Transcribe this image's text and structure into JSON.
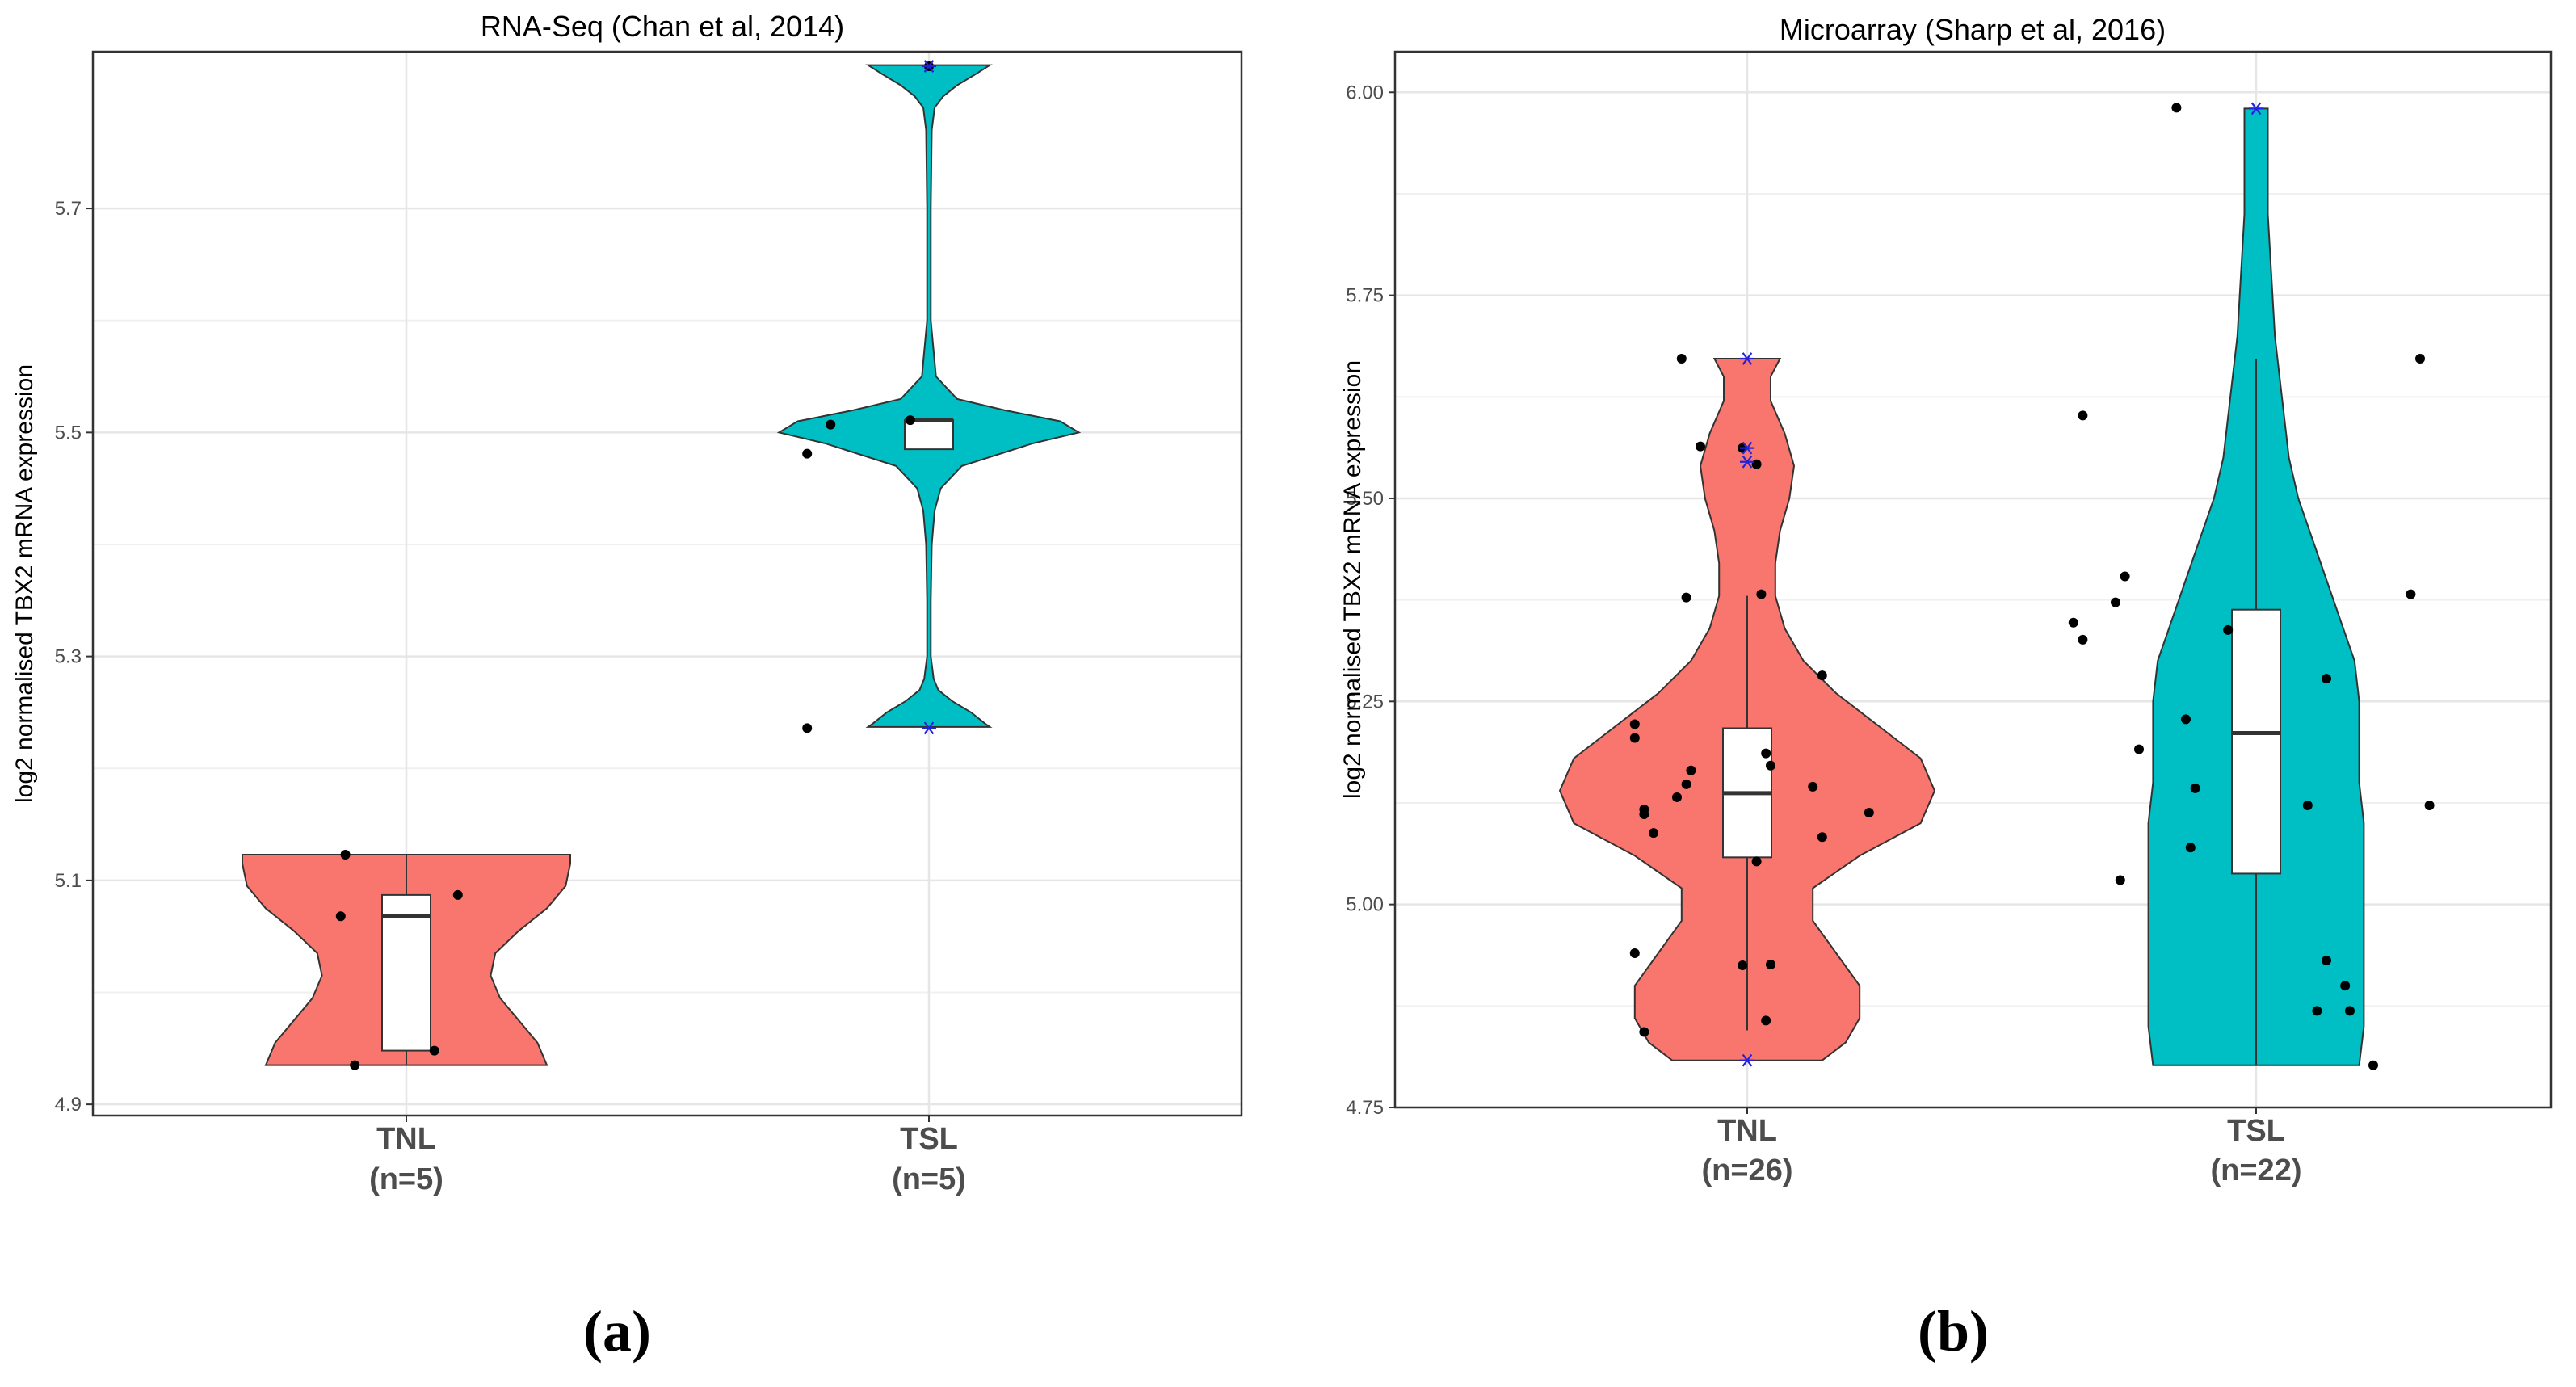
{
  "chart_data": [
    {
      "type": "violin",
      "panel_label": "(a)",
      "title": "RNA-Seq (Chan et al, 2014)",
      "ylabel": "log2 normalised TBX2 mRNA expression",
      "ylim": [
        4.89,
        5.84
      ],
      "yticks": [
        4.9,
        5.1,
        5.3,
        5.5,
        5.7
      ],
      "ytick_labels": [
        "4.9",
        "5.1",
        "5.3",
        "5.5",
        "5.7"
      ],
      "categories": [
        {
          "label": "TNL",
          "n_label": "(n=5)",
          "color": "#F8766D",
          "violin": [
            [
              4.935,
              0.3
            ],
            [
              4.955,
              0.28
            ],
            [
              4.975,
              0.24
            ],
            [
              4.995,
              0.2
            ],
            [
              5.015,
              0.18
            ],
            [
              5.035,
              0.19
            ],
            [
              5.055,
              0.24
            ],
            [
              5.075,
              0.3
            ],
            [
              5.095,
              0.34
            ],
            [
              5.115,
              0.35
            ],
            [
              5.123,
              0.35
            ]
          ],
          "box": {
            "whisker_low": 4.935,
            "q1": 4.948,
            "median": 5.068,
            "q3": 5.087,
            "whisker_high": 5.123
          },
          "points": [
            [
              -0.14,
              5.068
            ],
            [
              -0.13,
              5.123
            ],
            [
              -0.11,
              4.935
            ],
            [
              0.06,
              4.948
            ],
            [
              0.11,
              5.087
            ]
          ],
          "outliers": []
        },
        {
          "label": "TSL",
          "n_label": "(n=5)",
          "color": "#00BFC4",
          "violin": [
            [
              5.237,
              0.13
            ],
            [
              5.24,
              0.12
            ],
            [
              5.25,
              0.09
            ],
            [
              5.26,
              0.05
            ],
            [
              5.27,
              0.02
            ],
            [
              5.28,
              0.01
            ],
            [
              5.3,
              0.004
            ],
            [
              5.35,
              0.004
            ],
            [
              5.4,
              0.006
            ],
            [
              5.43,
              0.012
            ],
            [
              5.45,
              0.025
            ],
            [
              5.47,
              0.07
            ],
            [
              5.49,
              0.22
            ],
            [
              5.5,
              0.32
            ],
            [
              5.51,
              0.28
            ],
            [
              5.52,
              0.16
            ],
            [
              5.53,
              0.06
            ],
            [
              5.55,
              0.015
            ],
            [
              5.6,
              0.004
            ],
            [
              5.7,
              0.004
            ],
            [
              5.77,
              0.006
            ],
            [
              5.79,
              0.012
            ],
            [
              5.8,
              0.03
            ],
            [
              5.81,
              0.06
            ],
            [
              5.82,
              0.1
            ],
            [
              5.828,
              0.13
            ]
          ],
          "box": {
            "whisker_low": 5.485,
            "q1": 5.485,
            "median": 5.511,
            "q3": 5.511,
            "whisker_high": 5.511
          },
          "points": [
            [
              -0.26,
              5.481
            ],
            [
              -0.21,
              5.507
            ],
            [
              -0.26,
              5.236
            ],
            [
              -0.04,
              5.511
            ],
            [
              0.0,
              5.827
            ]
          ],
          "outliers": [
            [
              0.0,
              5.827
            ],
            [
              0.0,
              5.236
            ]
          ]
        }
      ]
    },
    {
      "type": "violin",
      "panel_label": "(b)",
      "title": "Microarray (Sharp et al, 2016)",
      "ylabel": "log2 normalised TBX2 mRNA expression",
      "ylim": [
        4.75,
        6.05
      ],
      "yticks": [
        4.75,
        5.0,
        5.25,
        5.5,
        5.75,
        6.0
      ],
      "ytick_labels": [
        "4.75",
        "5.00",
        "5.25",
        "5.50",
        "5.75",
        "6.00"
      ],
      "categories": [
        {
          "label": "TNL",
          "n_label": "(n=26)",
          "color": "#F8766D",
          "violin": [
            [
              4.808,
              0.16
            ],
            [
              4.83,
              0.21
            ],
            [
              4.86,
              0.24
            ],
            [
              4.9,
              0.24
            ],
            [
              4.94,
              0.19
            ],
            [
              4.98,
              0.14
            ],
            [
              5.02,
              0.14
            ],
            [
              5.06,
              0.24
            ],
            [
              5.1,
              0.37
            ],
            [
              5.14,
              0.4
            ],
            [
              5.18,
              0.37
            ],
            [
              5.22,
              0.28
            ],
            [
              5.26,
              0.19
            ],
            [
              5.3,
              0.12
            ],
            [
              5.34,
              0.08
            ],
            [
              5.38,
              0.06
            ],
            [
              5.42,
              0.06
            ],
            [
              5.46,
              0.07
            ],
            [
              5.5,
              0.09
            ],
            [
              5.54,
              0.1
            ],
            [
              5.58,
              0.08
            ],
            [
              5.62,
              0.05
            ],
            [
              5.65,
              0.05
            ],
            [
              5.672,
              0.07
            ]
          ],
          "box": {
            "whisker_low": 4.845,
            "q1": 5.058,
            "median": 5.137,
            "q3": 5.217,
            "whisker_high": 5.38
          },
          "points": [
            [
              -0.24,
              5.222
            ],
            [
              -0.24,
              5.205
            ],
            [
              -0.22,
              5.111
            ],
            [
              -0.22,
              5.117
            ],
            [
              -0.2,
              5.088
            ],
            [
              -0.24,
              4.94
            ],
            [
              -0.22,
              4.843
            ],
            [
              -0.14,
              5.672
            ],
            [
              -0.13,
              5.378
            ],
            [
              -0.12,
              5.165
            ],
            [
              -0.13,
              5.148
            ],
            [
              -0.15,
              5.132
            ],
            [
              -0.1,
              5.564
            ],
            [
              -0.01,
              5.562
            ],
            [
              0.02,
              5.542
            ],
            [
              0.03,
              5.382
            ],
            [
              0.04,
              5.186
            ],
            [
              0.05,
              5.171
            ],
            [
              0.02,
              5.053
            ],
            [
              -0.01,
              4.925
            ],
            [
              0.05,
              4.926
            ],
            [
              0.04,
              4.857
            ],
            [
              0.16,
              5.282
            ],
            [
              0.14,
              5.145
            ],
            [
              0.16,
              5.083
            ],
            [
              0.26,
              5.113
            ]
          ],
          "outliers": [
            [
              0.0,
              5.672
            ],
            [
              0.0,
              5.562
            ],
            [
              0.0,
              5.545
            ],
            [
              0.0,
              4.808
            ]
          ]
        },
        {
          "label": "TSL",
          "n_label": "(n=22)",
          "color": "#00BFC4",
          "violin": [
            [
              4.802,
              0.22
            ],
            [
              4.85,
              0.23
            ],
            [
              4.9,
              0.23
            ],
            [
              4.95,
              0.23
            ],
            [
              5.0,
              0.23
            ],
            [
              5.05,
              0.23
            ],
            [
              5.1,
              0.23
            ],
            [
              5.15,
              0.22
            ],
            [
              5.2,
              0.22
            ],
            [
              5.25,
              0.22
            ],
            [
              5.3,
              0.21
            ],
            [
              5.35,
              0.18
            ],
            [
              5.4,
              0.15
            ],
            [
              5.45,
              0.12
            ],
            [
              5.5,
              0.09
            ],
            [
              5.55,
              0.07
            ],
            [
              5.6,
              0.06
            ],
            [
              5.65,
              0.05
            ],
            [
              5.7,
              0.04
            ],
            [
              5.75,
              0.035
            ],
            [
              5.8,
              0.03
            ],
            [
              5.85,
              0.025
            ],
            [
              5.9,
              0.025
            ],
            [
              5.95,
              0.025
            ],
            [
              5.98,
              0.025
            ]
          ],
          "box": {
            "whisker_low": 4.802,
            "q1": 5.038,
            "median": 5.211,
            "q3": 5.363,
            "whisker_high": 5.672
          },
          "points": [
            [
              -0.37,
              5.602
            ],
            [
              -0.39,
              5.347
            ],
            [
              -0.37,
              5.326
            ],
            [
              -0.3,
              5.372
            ],
            [
              -0.28,
              5.404
            ],
            [
              -0.25,
              5.191
            ],
            [
              -0.29,
              5.03
            ],
            [
              -0.17,
              5.981
            ],
            [
              -0.15,
              5.228
            ],
            [
              -0.13,
              5.143
            ],
            [
              -0.14,
              5.07
            ],
            [
              -0.06,
              5.338
            ],
            [
              0.15,
              5.278
            ],
            [
              0.11,
              5.122
            ],
            [
              0.15,
              4.931
            ],
            [
              0.13,
              4.869
            ],
            [
              0.19,
              4.9
            ],
            [
              0.2,
              4.869
            ],
            [
              0.25,
              4.802
            ],
            [
              0.33,
              5.382
            ],
            [
              0.35,
              5.672
            ],
            [
              0.37,
              5.122
            ]
          ],
          "outliers": [
            [
              0.0,
              5.98
            ]
          ]
        }
      ]
    }
  ]
}
